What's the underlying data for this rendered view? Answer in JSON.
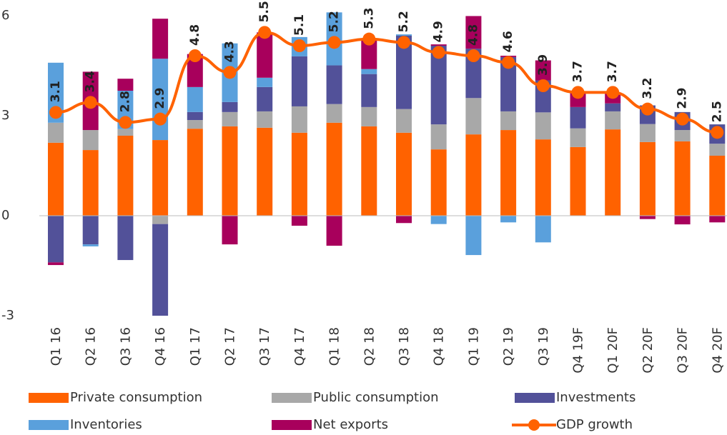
{
  "chart_data": {
    "type": "bar",
    "stacked": true,
    "categories": [
      "Q1 16",
      "Q2 16",
      "Q3 16",
      "Q4 16",
      "Q1 17",
      "Q2 17",
      "Q3 17",
      "Q4 17",
      "Q1 18",
      "Q2 18",
      "Q3 18",
      "Q4 18",
      "Q1 19",
      "Q2 19",
      "Q3 19",
      "Q4 19F",
      "Q1 20F",
      "Q2 20F",
      "Q3 20F",
      "Q4 20F"
    ],
    "series": [
      {
        "name": "Private consumption",
        "color": "#ff6200",
        "values": [
          2.19,
          1.97,
          2.4,
          2.27,
          2.61,
          2.68,
          2.64,
          2.49,
          2.79,
          2.68,
          2.49,
          1.99,
          2.44,
          2.57,
          2.29,
          2.06,
          2.59,
          2.21,
          2.23,
          1.8
        ]
      },
      {
        "name": "Public consumption",
        "color": "#a8a8a8",
        "values": [
          0.6,
          0.6,
          0.2,
          -0.25,
          0.26,
          0.43,
          0.49,
          0.79,
          0.56,
          0.58,
          0.71,
          0.75,
          1.09,
          0.56,
          0.81,
          0.56,
          0.54,
          0.54,
          0.34,
          0.36
        ]
      },
      {
        "name": "Investments",
        "color": "#525199",
        "values": [
          -1.4,
          -0.86,
          -1.33,
          -2.75,
          0.24,
          0.3,
          0.73,
          1.5,
          1.16,
          0.99,
          2.2,
          2.36,
          1.48,
          1.63,
          0.96,
          0.64,
          0.24,
          0.56,
          0.54,
          0.58
        ]
      },
      {
        "name": "Inventories",
        "color": "#5aa0dc",
        "values": [
          1.8,
          -0.06,
          1.15,
          2.44,
          0.75,
          1.76,
          0.28,
          0.58,
          1.59,
          0.15,
          0.04,
          -0.25,
          -1.18,
          -0.2,
          -0.8,
          0,
          0,
          0,
          0,
          0
        ]
      },
      {
        "name": "Net exports",
        "color": "#a8005c",
        "values": [
          -0.08,
          1.75,
          0.36,
          1.2,
          0.99,
          -0.86,
          1.36,
          -0.3,
          -0.9,
          0.9,
          -0.22,
          0.04,
          0.98,
          0.04,
          0.6,
          0.44,
          0.33,
          -0.1,
          -0.26,
          -0.2
        ]
      },
      {
        "name": "GDP growth",
        "color": "#ff6200",
        "type": "line",
        "values": [
          3.1,
          3.4,
          2.8,
          2.9,
          4.8,
          4.3,
          5.5,
          5.1,
          5.2,
          5.3,
          5.2,
          4.9,
          4.8,
          4.6,
          3.9,
          3.7,
          3.7,
          3.2,
          2.9,
          2.5
        ]
      }
    ],
    "ylim": [
      -3,
      6
    ],
    "yticks": [
      -3,
      0,
      3,
      6
    ],
    "grid": false
  }
}
